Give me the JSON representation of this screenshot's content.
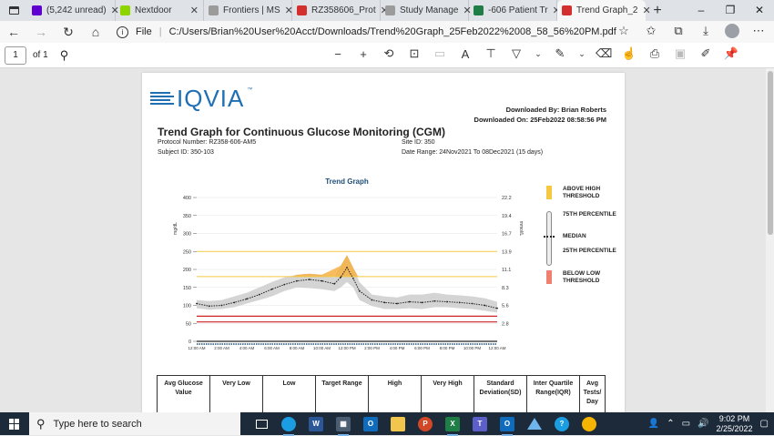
{
  "tabs": [
    {
      "label": "(5,242 unread)",
      "icon": "yahoo-mail-icon",
      "color": "#5f01d1"
    },
    {
      "label": "Nextdoor",
      "icon": "nextdoor-icon",
      "color": "#8ed500"
    },
    {
      "label": "Frontiers | MS",
      "icon": "page-icon",
      "color": "#9b9b9b"
    },
    {
      "label": "RZ358606_Prot",
      "icon": "pdf-icon",
      "color": "#d32f2f"
    },
    {
      "label": "Study Manage",
      "icon": "page-icon",
      "color": "#9b9b9b"
    },
    {
      "label": "-606 Patient Tr",
      "icon": "excel-icon",
      "color": "#1e7e45"
    },
    {
      "label": "Trend Graph_2",
      "icon": "pdf-icon",
      "color": "#d32f2f",
      "active": true
    }
  ],
  "address": {
    "scheme_label": "File",
    "url": "C:/Users/Brian%20User%20Acct/Downloads/Trend%20Graph_25Feb2022%2008_58_56%20PM.pdf"
  },
  "pdf_toolbar": {
    "page_current": "1",
    "page_total": "of 1"
  },
  "document": {
    "logo_text": "IQVIA",
    "downloaded_by": "Downloaded By: Brian Roberts",
    "downloaded_on": "Downloaded On: 25Feb2022 08:58:56 PM",
    "title": "Trend Graph for Continuous Glucose Monitoring (CGM)",
    "protocol": "Protocol Number: RZ358-606-AM5",
    "subject": "Subject ID: 350-103",
    "site": "Site ID: 350",
    "date_range": "Date Range: 24Nov2021 To 08Dec2021 (15 days)",
    "legend": [
      {
        "label": "ABOVE HIGH THRESHOLD",
        "color": "#f6c842"
      },
      {
        "label": "75TH PERCENTILE"
      },
      {
        "label": "MEDIAN"
      },
      {
        "label": "25TH PERCENTILE"
      },
      {
        "label": "BELOW LOW THRESHOLD",
        "color": "#f08070"
      }
    ],
    "table_headers": [
      "Avg Glucose Value",
      "Very Low",
      "Low",
      "Target Range",
      "High",
      "Very High",
      "Standard Deviation(SD)",
      "Inter Quartile Range(IQR)",
      "Avg Tests/ Day"
    ]
  },
  "chart_data": {
    "type": "line",
    "title": "Trend Graph",
    "ylabel": "mg/dL",
    "y2label": "mmol/L",
    "ylim": [
      0,
      400
    ],
    "y_ticks": [
      0,
      50,
      100,
      150,
      200,
      250,
      300,
      350,
      400
    ],
    "y2_ticks": [
      "2.8",
      "5.6",
      "8.3",
      "11.1",
      "13.9",
      "16.7",
      "19.4",
      "22.2"
    ],
    "x_ticks": [
      "12:00 AM",
      "2:00 AM",
      "4:00 AM",
      "6:00 AM",
      "8:00 AM",
      "10:00 AM",
      "12:00 PM",
      "2:00 PM",
      "4:00 PM",
      "6:00 PM",
      "8:00 PM",
      "10:00 PM",
      "12:00 AM"
    ],
    "thresholds": {
      "very_high": 250,
      "high": 180,
      "low": 70,
      "very_low": 54
    },
    "colors": {
      "high_line": "#f6c842",
      "low_line": "#cc2222",
      "band": "#cfcfcf",
      "above_fill": "#f6b042",
      "median": "#222222"
    },
    "x_hours": [
      0,
      1,
      2,
      3,
      4,
      5,
      6,
      7,
      8,
      9,
      10,
      11,
      11.5,
      12,
      12.5,
      13,
      14,
      15,
      16,
      17,
      18,
      19,
      20,
      21,
      22,
      23,
      24
    ],
    "median": [
      105,
      98,
      100,
      108,
      118,
      130,
      145,
      158,
      168,
      172,
      168,
      160,
      178,
      205,
      175,
      140,
      115,
      108,
      105,
      110,
      108,
      112,
      110,
      108,
      105,
      100,
      92
    ],
    "p25": [
      92,
      88,
      90,
      95,
      105,
      115,
      125,
      140,
      150,
      148,
      145,
      140,
      150,
      165,
      150,
      115,
      98,
      90,
      90,
      92,
      90,
      95,
      95,
      92,
      90,
      85,
      80
    ],
    "p75": [
      115,
      112,
      115,
      125,
      135,
      150,
      165,
      178,
      185,
      188,
      185,
      178,
      210,
      240,
      205,
      165,
      130,
      125,
      122,
      130,
      130,
      135,
      130,
      128,
      125,
      120,
      110
    ]
  },
  "taskbar": {
    "search_placeholder": "Type here to search",
    "time": "9:02 PM",
    "date": "2/25/2022"
  }
}
